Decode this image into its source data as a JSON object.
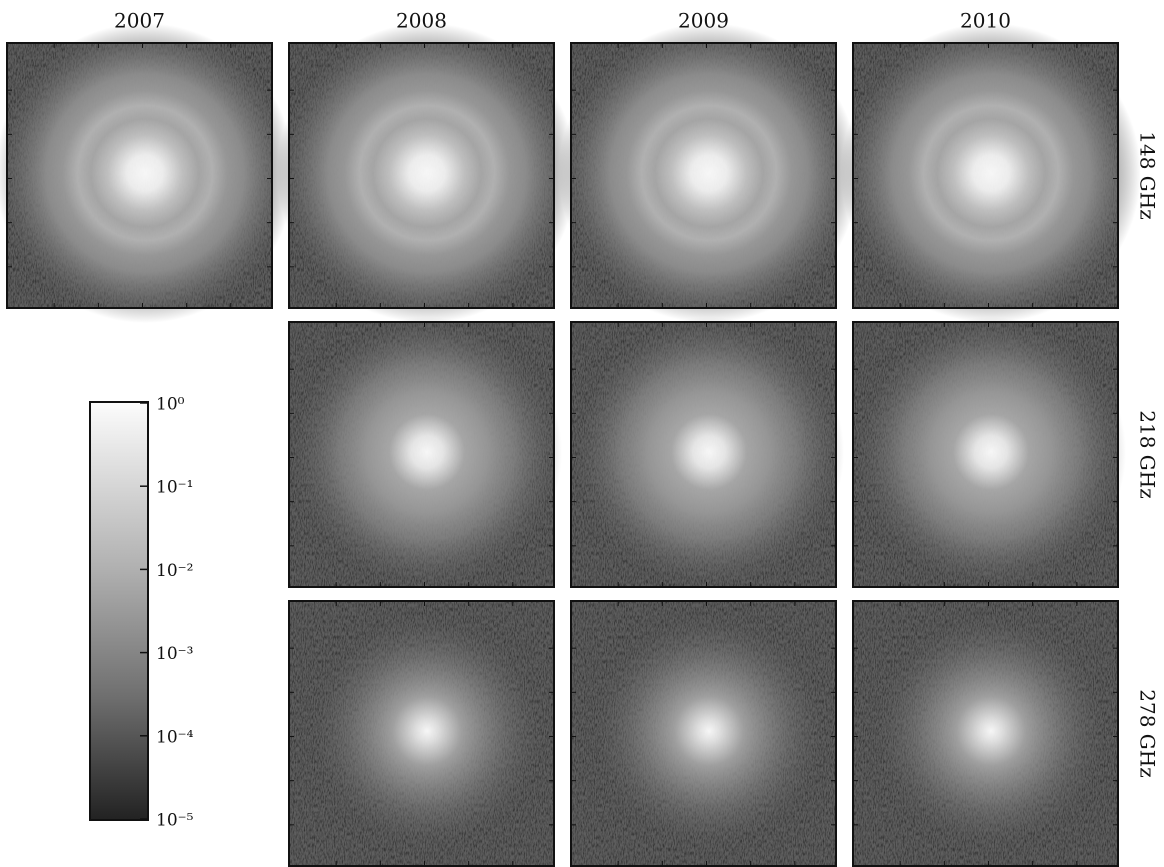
{
  "columns": [
    "2007",
    "2008",
    "2009",
    "2010"
  ],
  "rows": [
    "148 GHz",
    "218 GHz",
    "278 GHz"
  ],
  "colorbar": {
    "log": true,
    "lim": [
      1e-05,
      1
    ],
    "ticks": [
      {
        "value": 1,
        "label": "10⁰"
      },
      {
        "value": 0.1,
        "label": "10⁻¹"
      },
      {
        "value": 0.01,
        "label": "10⁻²"
      },
      {
        "value": 0.001,
        "label": "10⁻³"
      },
      {
        "value": 0.0001,
        "label": "10⁻⁴"
      },
      {
        "value": 1e-05,
        "label": "10⁻⁵"
      }
    ]
  }
}
